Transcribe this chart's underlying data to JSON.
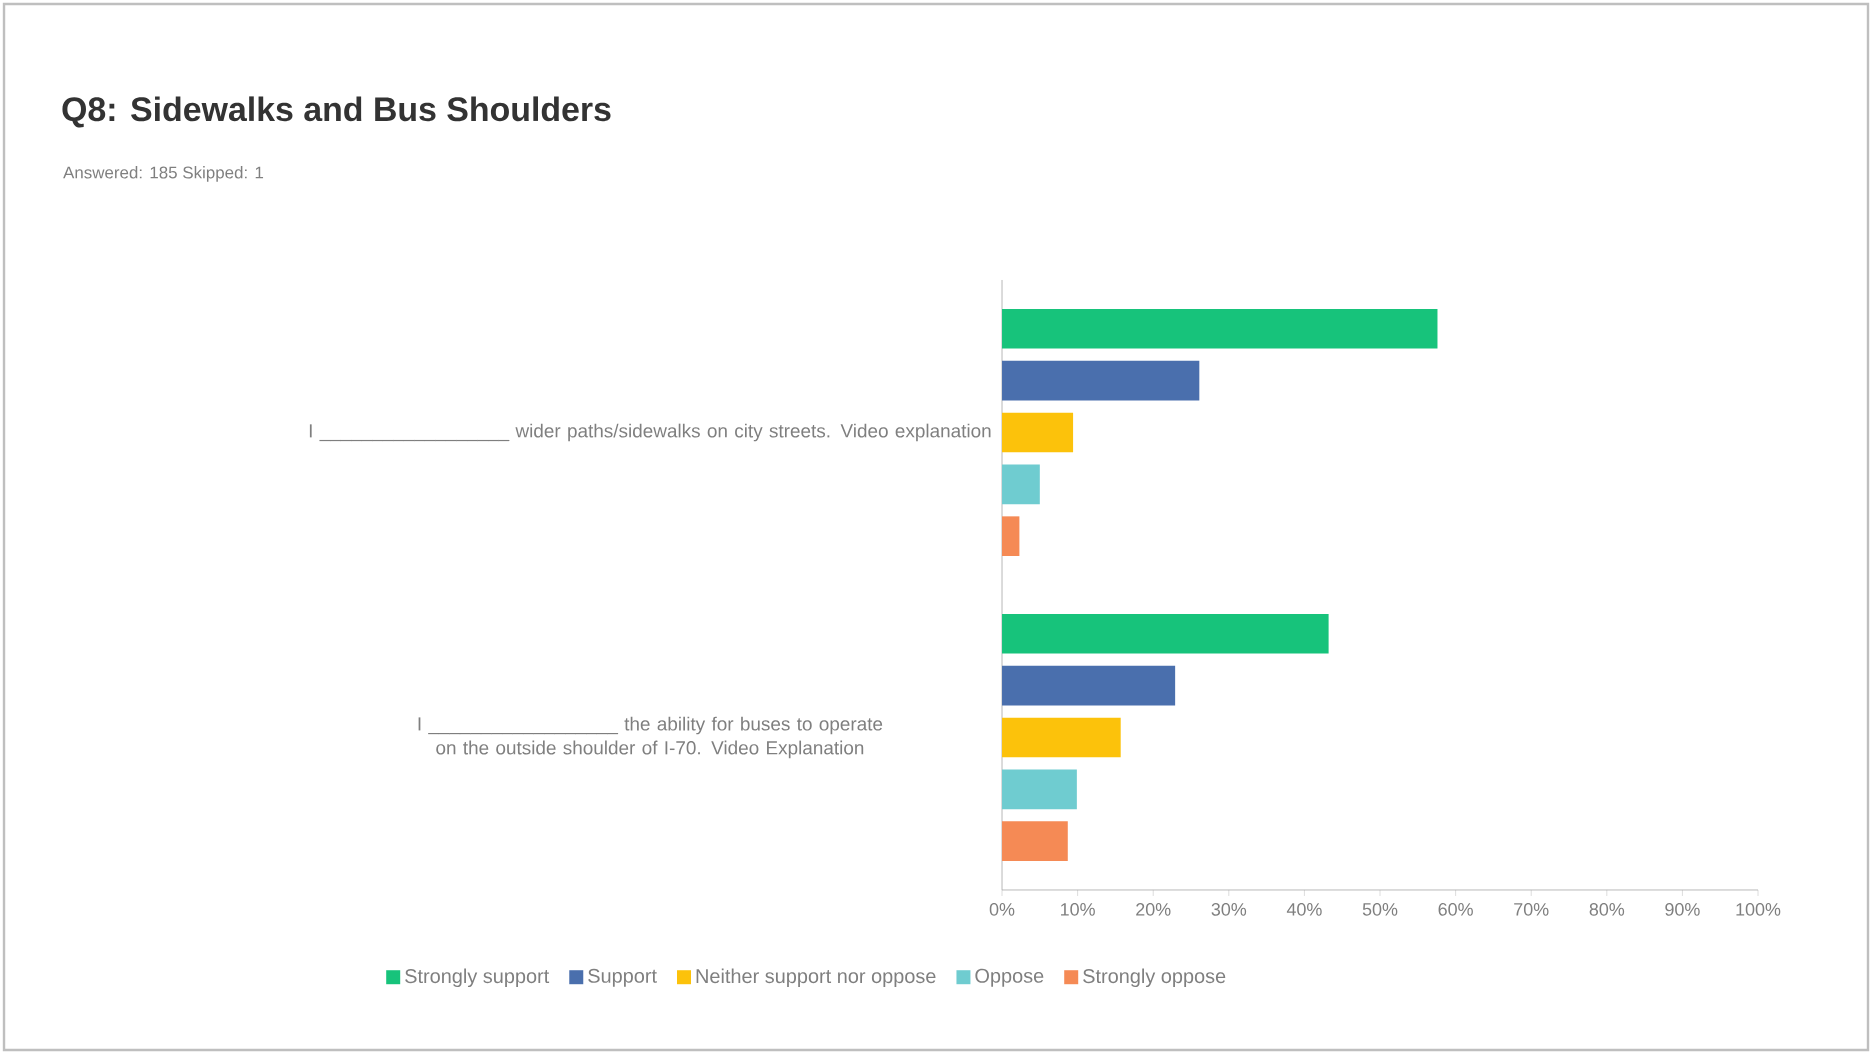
{
  "chart_data": {
    "type": "bar",
    "orientation": "horizontal",
    "title": "Q8: Sidewalks and Bus Shoulders",
    "subtitle": "Answered: 185   Skipped: 1",
    "categories": [
      "I __________________ wider paths/sidewalks on city streets. Video explanation",
      "I __________________ the ability for buses to operate on the outside shoulder of I-70. Video Explanation"
    ],
    "series": [
      {
        "name": "Strongly support",
        "color": "#17c37b",
        "values": [
          57.6,
          43.2
        ]
      },
      {
        "name": "Support",
        "color": "#4a6fad",
        "values": [
          26.1,
          22.9
        ]
      },
      {
        "name": "Neither support nor oppose",
        "color": "#fcc20b",
        "values": [
          9.4,
          15.7
        ]
      },
      {
        "name": "Oppose",
        "color": "#6fccd0",
        "values": [
          5.0,
          9.9
        ]
      },
      {
        "name": "Strongly oppose",
        "color": "#f58a55",
        "values": [
          2.3,
          8.7
        ]
      }
    ],
    "xlim": [
      0,
      100
    ],
    "xticks": [
      {
        "value": 0,
        "label": "0%"
      },
      {
        "value": 10,
        "label": "10%"
      },
      {
        "value": 20,
        "label": "20%"
      },
      {
        "value": 30,
        "label": "30%"
      },
      {
        "value": 40,
        "label": "40%"
      },
      {
        "value": 50,
        "label": "50%"
      },
      {
        "value": 60,
        "label": "60%"
      },
      {
        "value": 70,
        "label": "70%"
      },
      {
        "value": 80,
        "label": "80%"
      },
      {
        "value": 90,
        "label": "90%"
      },
      {
        "value": 100,
        "label": "100%"
      }
    ],
    "legend": "bottom"
  }
}
